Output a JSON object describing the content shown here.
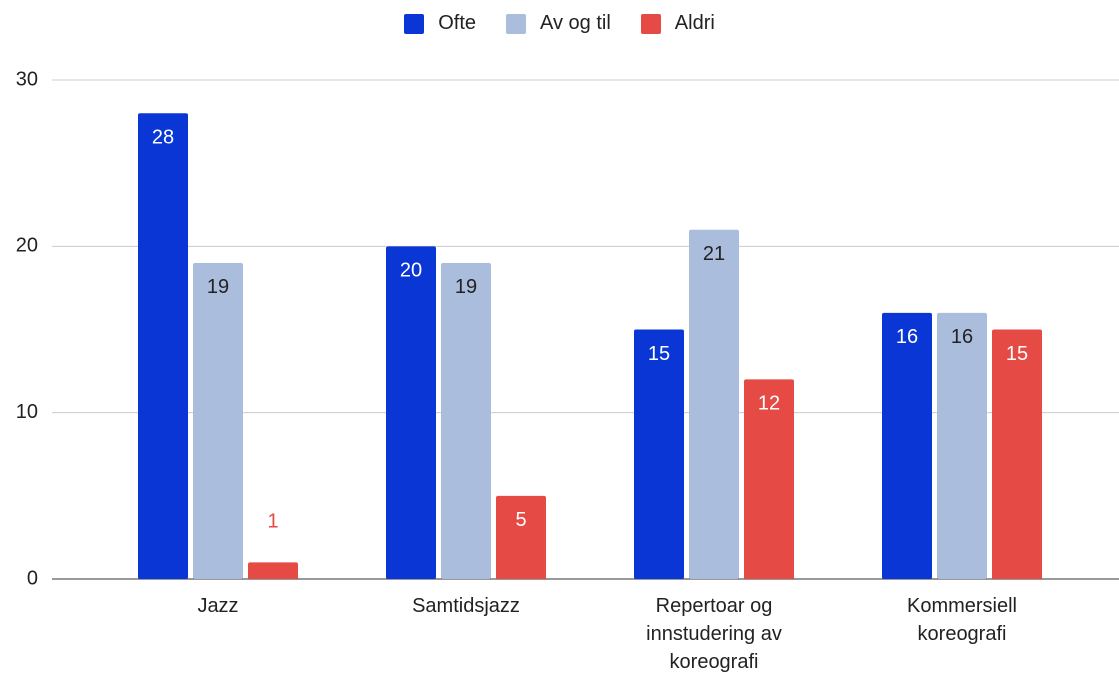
{
  "chart_data": {
    "type": "bar",
    "categories": [
      "Jazz",
      "Samtidsjazz",
      "Repertoar og innstudering av koreografi",
      "Kommersiell koreografi"
    ],
    "series": [
      {
        "name": "Ofte",
        "color": "#0b36d6",
        "values": [
          28,
          20,
          15,
          16
        ]
      },
      {
        "name": "Av og til",
        "color": "#abbddc",
        "values": [
          19,
          19,
          21,
          16
        ]
      },
      {
        "name": "Aldri",
        "color": "#e54a45",
        "values": [
          1,
          5,
          12,
          15
        ]
      }
    ],
    "ylim": [
      0,
      30
    ],
    "yticks": [
      0,
      10,
      20,
      30
    ],
    "grid": true,
    "legend": "top"
  }
}
